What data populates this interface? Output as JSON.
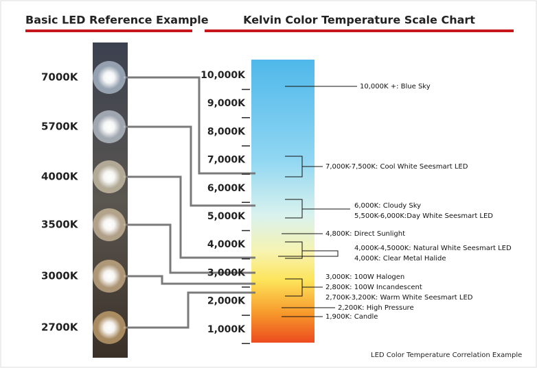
{
  "header": {
    "left_title": "Basic LED Reference Example",
    "right_title": "Kelvin Color Temperature Scale Chart"
  },
  "leds": [
    "7000K",
    "5700K",
    "4000K",
    "3500K",
    "3000K",
    "2700K"
  ],
  "scale_labels": [
    "10,000K",
    "9,000K",
    "8,000K",
    "7,000K",
    "6,000K",
    "5,000K",
    "4,000K",
    "3,000K",
    "2,000K",
    "1,000K"
  ],
  "annotations": [
    "10,000K +: Blue Sky",
    "7,000K-7,500K: Cool White Seesmart LED",
    "6,000K: Cloudy Sky",
    "5,500K-6,000K:Day White Seesmart LED",
    "4,800K: Direct Sunlight",
    "4,000K-4,5000K: Natural White Seesmart LED",
    "4,000K: Clear Metal Halide",
    "3,000K: 100W Halogen",
    "2,800K: 100W Incandescent",
    "2,700K-3,200K: Warm White Seesmart LED",
    "2,200K: High Pressure",
    "1,900K: Candle"
  ],
  "footer": "LED Color Temperature Correlation Example"
}
